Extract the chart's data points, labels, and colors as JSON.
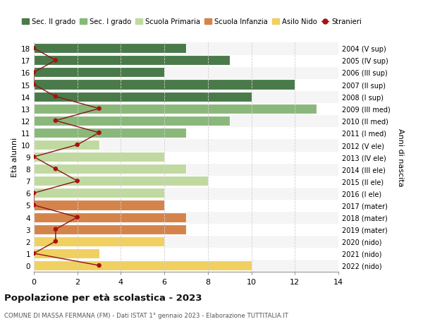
{
  "ages": [
    18,
    17,
    16,
    15,
    14,
    13,
    12,
    11,
    10,
    9,
    8,
    7,
    6,
    5,
    4,
    3,
    2,
    1,
    0
  ],
  "right_labels": [
    "2004 (V sup)",
    "2005 (IV sup)",
    "2006 (III sup)",
    "2007 (II sup)",
    "2008 (I sup)",
    "2009 (III med)",
    "2010 (II med)",
    "2011 (I med)",
    "2012 (V ele)",
    "2013 (IV ele)",
    "2014 (III ele)",
    "2015 (II ele)",
    "2016 (I ele)",
    "2017 (mater)",
    "2018 (mater)",
    "2019 (mater)",
    "2020 (nido)",
    "2021 (nido)",
    "2022 (nido)"
  ],
  "bar_values": [
    7,
    9,
    6,
    12,
    10,
    13,
    9,
    7,
    3,
    6,
    7,
    8,
    6,
    6,
    7,
    7,
    6,
    3,
    10
  ],
  "bar_colors": [
    "#4a7a4a",
    "#4a7a4a",
    "#4a7a4a",
    "#4a7a4a",
    "#4a7a4a",
    "#8ab87a",
    "#8ab87a",
    "#8ab87a",
    "#c0d9a0",
    "#c0d9a0",
    "#c0d9a0",
    "#c0d9a0",
    "#c0d9a0",
    "#d4844a",
    "#d4844a",
    "#d4844a",
    "#f0d060",
    "#f0d060",
    "#f0d060"
  ],
  "stranieri_values": [
    0,
    1,
    0,
    0,
    1,
    3,
    1,
    3,
    2,
    0,
    1,
    2,
    0,
    0,
    2,
    1,
    1,
    0,
    3
  ],
  "legend_labels": [
    "Sec. II grado",
    "Sec. I grado",
    "Scuola Primaria",
    "Scuola Infanzia",
    "Asilo Nido",
    "Stranieri"
  ],
  "legend_colors": [
    "#4a7a4a",
    "#8ab87a",
    "#c0d9a0",
    "#d4844a",
    "#f0d060",
    "#aa1111"
  ],
  "title": "Popolazione per età scolastica - 2023",
  "subtitle": "COMUNE DI MASSA FERMANA (FM) - Dati ISTAT 1° gennaio 2023 - Elaborazione TUTTITALIA.IT",
  "ylabel_left": "Età alunni",
  "ylabel_right": "Anni di nascita",
  "xlim": [
    0,
    14
  ],
  "xticks": [
    0,
    2,
    4,
    6,
    8,
    10,
    12,
    14
  ],
  "background_color": "#ffffff",
  "grid_color": "#d0d0d0",
  "bar_edge_color": "#ffffff",
  "row_bg_even": "#f5f5f5",
  "row_bg_odd": "#ffffff"
}
